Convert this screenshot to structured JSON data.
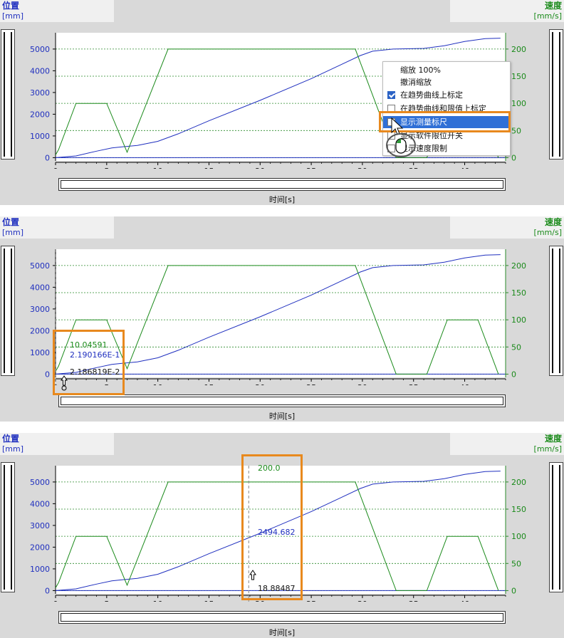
{
  "panels": [
    {
      "y_title": "位置",
      "y_unit": "[mm]",
      "y2_title": "速度",
      "y2_unit": "[mm/s]",
      "x_label": "时间[s]"
    },
    {
      "y_title": "位置",
      "y_unit": "[mm]",
      "y2_title": "速度",
      "y2_unit": "[mm/s]",
      "x_label": "时间[s]"
    },
    {
      "y_title": "位置",
      "y_unit": "[mm]",
      "y2_title": "速度",
      "y2_unit": "[mm/s]",
      "x_label": "时间[s]"
    }
  ],
  "context_menu": {
    "items": [
      {
        "label": "缩放 100%",
        "checkbox": false
      },
      {
        "label": "撤消缩放",
        "checkbox": false
      },
      {
        "label": "在趋势曲线上标定",
        "checkbox": true,
        "checked": true
      },
      {
        "label": "在趋势曲线和限值上标定",
        "checkbox": true,
        "checked": false
      },
      {
        "label": "显示测量标尺",
        "checkbox": true,
        "checked": false,
        "highlighted": true
      },
      {
        "label": "显示软件限位开关",
        "checkbox": true,
        "checked": false
      },
      {
        "label": "显示速度限制",
        "checkbox": true,
        "checked": false
      }
    ]
  },
  "measurements": {
    "panel2": {
      "speed": "10.04591",
      "position": "2.190166E-1",
      "time": "2.186819E-2"
    },
    "panel3": {
      "speed": "200.0",
      "position": "2494.682",
      "time": "18.88487"
    }
  },
  "chart_data": [
    {
      "type": "line",
      "xlabel": "时间[s]",
      "ylabel": "位置 [mm]",
      "y2label": "速度 [mm/s]",
      "xlim": [
        0,
        44
      ],
      "ylim": [
        -150,
        5750
      ],
      "y2lim": [
        -6,
        230
      ],
      "xticks": [
        0,
        5,
        10,
        15,
        20,
        25,
        30,
        35,
        40
      ],
      "yticks": [
        0,
        1000,
        2000,
        3000,
        4000,
        5000
      ],
      "y2ticks": [
        0,
        50,
        100,
        150,
        200
      ],
      "series": [
        {
          "name": "位置",
          "axis": "left",
          "color": "#1f2fbf",
          "points": [
            [
              0,
              0
            ],
            [
              2,
              80
            ],
            [
              4,
              300
            ],
            [
              5.5,
              450
            ],
            [
              6.5,
              500
            ],
            [
              8,
              560
            ],
            [
              10,
              750
            ],
            [
              12,
              1100
            ],
            [
              15,
              1700
            ],
            [
              20,
              2640
            ],
            [
              25,
              3640
            ],
            [
              28,
              4300
            ],
            [
              29.8,
              4700
            ],
            [
              31,
              4900
            ],
            [
              33,
              5000
            ],
            [
              36,
              5030
            ],
            [
              38,
              5150
            ],
            [
              40,
              5350
            ],
            [
              42,
              5480
            ],
            [
              43.5,
              5500
            ]
          ]
        },
        {
          "name": "速度",
          "axis": "right",
          "color": "#1a8a1a",
          "points": [
            [
              0,
              5
            ],
            [
              0.3,
              15
            ],
            [
              2,
              100
            ],
            [
              5,
              100
            ],
            [
              7,
              10
            ],
            [
              11,
              200
            ],
            [
              29.3,
              200
            ],
            [
              33.3,
              0
            ],
            [
              36.3,
              0
            ],
            [
              38.3,
              100
            ],
            [
              41.3,
              100
            ],
            [
              43.3,
              0
            ]
          ]
        }
      ]
    },
    {
      "type": "line",
      "xlabel": "时间[s]",
      "ylabel": "位置 [mm]",
      "y2label": "速度 [mm/s]",
      "xlim": [
        0,
        44
      ],
      "ylim": [
        -150,
        5750
      ],
      "y2lim": [
        -6,
        230
      ],
      "xticks": [
        0,
        5,
        10,
        15,
        20,
        25,
        30,
        35,
        40
      ],
      "yticks": [
        0,
        1000,
        2000,
        3000,
        4000,
        5000
      ],
      "y2ticks": [
        0,
        50,
        100,
        150,
        200
      ],
      "series": [
        {
          "name": "位置",
          "axis": "left",
          "color": "#1f2fbf",
          "points": [
            [
              0,
              0
            ],
            [
              2,
              80
            ],
            [
              4,
              300
            ],
            [
              5.5,
              450
            ],
            [
              6.5,
              500
            ],
            [
              8,
              560
            ],
            [
              10,
              750
            ],
            [
              12,
              1100
            ],
            [
              15,
              1700
            ],
            [
              20,
              2640
            ],
            [
              25,
              3640
            ],
            [
              28,
              4300
            ],
            [
              29.8,
              4700
            ],
            [
              31,
              4900
            ],
            [
              33,
              5000
            ],
            [
              36,
              5030
            ],
            [
              38,
              5150
            ],
            [
              40,
              5350
            ],
            [
              42,
              5480
            ],
            [
              43.5,
              5500
            ]
          ]
        },
        {
          "name": "速度",
          "axis": "right",
          "color": "#1a8a1a",
          "points": [
            [
              0,
              5
            ],
            [
              0.3,
              15
            ],
            [
              2,
              100
            ],
            [
              5,
              100
            ],
            [
              7,
              10
            ],
            [
              11,
              200
            ],
            [
              29.3,
              200
            ],
            [
              33.3,
              0
            ],
            [
              36.3,
              0
            ],
            [
              38.3,
              100
            ],
            [
              41.3,
              100
            ],
            [
              43.3,
              0
            ]
          ]
        }
      ],
      "cursor_x": 0.02186819
    },
    {
      "type": "line",
      "xlabel": "时间[s]",
      "ylabel": "位置 [mm]",
      "y2label": "速度 [mm/s]",
      "xlim": [
        0,
        44
      ],
      "ylim": [
        -150,
        5750
      ],
      "y2lim": [
        -6,
        230
      ],
      "xticks": [
        0,
        5,
        10,
        15,
        20,
        25,
        30,
        35,
        40
      ],
      "yticks": [
        0,
        1000,
        2000,
        3000,
        4000,
        5000
      ],
      "y2ticks": [
        0,
        50,
        100,
        150,
        200
      ],
      "series": [
        {
          "name": "位置",
          "axis": "left",
          "color": "#1f2fbf",
          "points": [
            [
              0,
              0
            ],
            [
              2,
              80
            ],
            [
              4,
              300
            ],
            [
              5.5,
              450
            ],
            [
              6.5,
              500
            ],
            [
              8,
              560
            ],
            [
              10,
              750
            ],
            [
              12,
              1100
            ],
            [
              15,
              1700
            ],
            [
              20,
              2640
            ],
            [
              25,
              3640
            ],
            [
              28,
              4300
            ],
            [
              29.8,
              4700
            ],
            [
              31,
              4900
            ],
            [
              33,
              5000
            ],
            [
              36,
              5030
            ],
            [
              38,
              5150
            ],
            [
              40,
              5350
            ],
            [
              42,
              5480
            ],
            [
              43.5,
              5500
            ]
          ]
        },
        {
          "name": "速度",
          "axis": "right",
          "color": "#1a8a1a",
          "points": [
            [
              0,
              5
            ],
            [
              0.3,
              15
            ],
            [
              2,
              100
            ],
            [
              5,
              100
            ],
            [
              7,
              10
            ],
            [
              11,
              200
            ],
            [
              29.3,
              200
            ],
            [
              33.3,
              0
            ],
            [
              36.3,
              0
            ],
            [
              38.3,
              100
            ],
            [
              41.3,
              100
            ],
            [
              43.3,
              0
            ]
          ]
        }
      ],
      "cursor_x": 18.88487
    }
  ]
}
